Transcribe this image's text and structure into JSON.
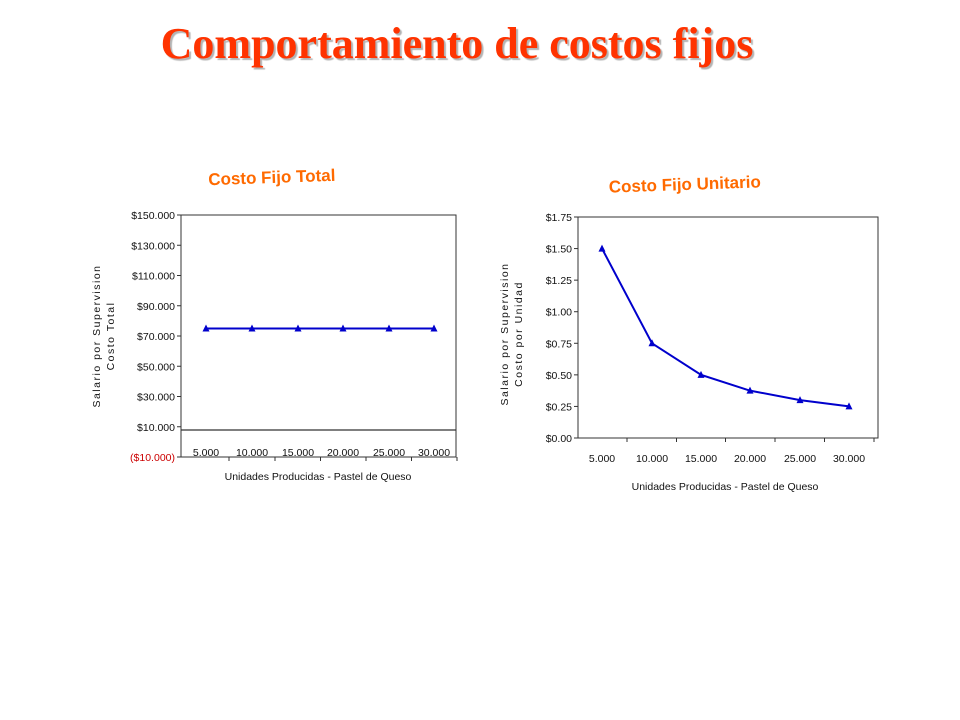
{
  "slide": {
    "title": "Comportamiento de costos fijos"
  },
  "colors": {
    "title": "#ff3300",
    "chart_title": "#ff6a00",
    "series": "#0000cc",
    "negative_tick": "#cc0000"
  },
  "chart_data": [
    {
      "type": "line",
      "title": "Costo Fijo Total",
      "xlabel": "Unidades Producidas - Pastel de Queso",
      "ylabel": [
        "Salario por Supervision",
        "Costo Total"
      ],
      "categories": [
        "5.000",
        "10.000",
        "15.000",
        "20.000",
        "25.000",
        "30.000"
      ],
      "series": [
        {
          "values": [
            75000,
            75000,
            75000,
            75000,
            75000,
            75000
          ]
        }
      ],
      "yticks": [
        {
          "value": 150000,
          "label": "$150.000"
        },
        {
          "value": 130000,
          "label": "$130.000"
        },
        {
          "value": 110000,
          "label": "$110.000"
        },
        {
          "value": 90000,
          "label": "$90.000"
        },
        {
          "value": 70000,
          "label": "$70.000"
        },
        {
          "value": 50000,
          "label": "$50.000"
        },
        {
          "value": 30000,
          "label": "$30.000"
        },
        {
          "value": 10000,
          "label": "$10.000"
        },
        {
          "value": -10000,
          "label": "($10.000)"
        }
      ],
      "ylim": [
        -10000,
        150000
      ],
      "marker": "triangle",
      "grid": false
    },
    {
      "type": "line",
      "title": "Costo Fijo Unitario",
      "xlabel": "Unidades Producidas - Pastel de Queso",
      "ylabel": [
        "Salario por Supervision",
        "Costo por Unidad"
      ],
      "categories": [
        "5.000",
        "10.000",
        "15.000",
        "20.000",
        "25.000",
        "30.000"
      ],
      "series": [
        {
          "values": [
            1.5,
            0.75,
            0.5,
            0.375,
            0.3,
            0.25
          ]
        }
      ],
      "yticks": [
        {
          "value": 1.75,
          "label": "$1.75"
        },
        {
          "value": 1.5,
          "label": "$1.50"
        },
        {
          "value": 1.25,
          "label": "$1.25"
        },
        {
          "value": 1.0,
          "label": "$1.00"
        },
        {
          "value": 0.75,
          "label": "$0.75"
        },
        {
          "value": 0.5,
          "label": "$0.50"
        },
        {
          "value": 0.25,
          "label": "$0.25"
        },
        {
          "value": 0.0,
          "label": "$0.00"
        }
      ],
      "ylim": [
        0,
        1.75
      ],
      "marker": "triangle",
      "grid": false
    }
  ]
}
